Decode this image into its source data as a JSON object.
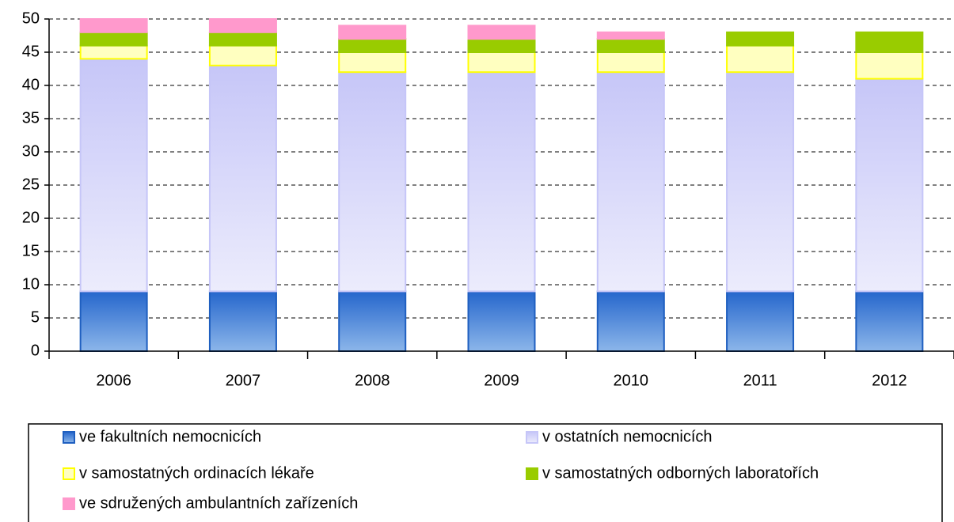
{
  "chart_data": {
    "type": "stacked_bar",
    "categories": [
      "2006",
      "2007",
      "2008",
      "2009",
      "2010",
      "2011",
      "2012"
    ],
    "series": [
      {
        "name": "ve fakultních nemocnicích",
        "color": "#3a7bd5",
        "values": [
          9,
          9,
          9,
          9,
          9,
          9,
          9
        ]
      },
      {
        "name": "v ostatních nemocnicích",
        "color": "#ccccfa",
        "values": [
          35,
          34,
          33,
          33,
          33,
          33,
          32
        ]
      },
      {
        "name": "v samostatných ordinacích lékaře",
        "color": "#ffffc0",
        "values": [
          2,
          3,
          3,
          3,
          3,
          4,
          4
        ]
      },
      {
        "name": "v samostatných odborných laboratořích",
        "color": "#99cc00",
        "values": [
          2,
          2,
          2,
          2,
          2,
          2,
          3
        ]
      },
      {
        "name": "ve sdružených ambulantních zařízeních",
        "color": "#ff99cc",
        "values": [
          2,
          2,
          2,
          2,
          1,
          0,
          0
        ]
      }
    ],
    "ylim": [
      0,
      50
    ],
    "yticks": [
      0,
      5,
      10,
      15,
      20,
      25,
      30,
      35,
      40,
      45,
      50
    ],
    "grid": true,
    "legend": "bottom"
  }
}
